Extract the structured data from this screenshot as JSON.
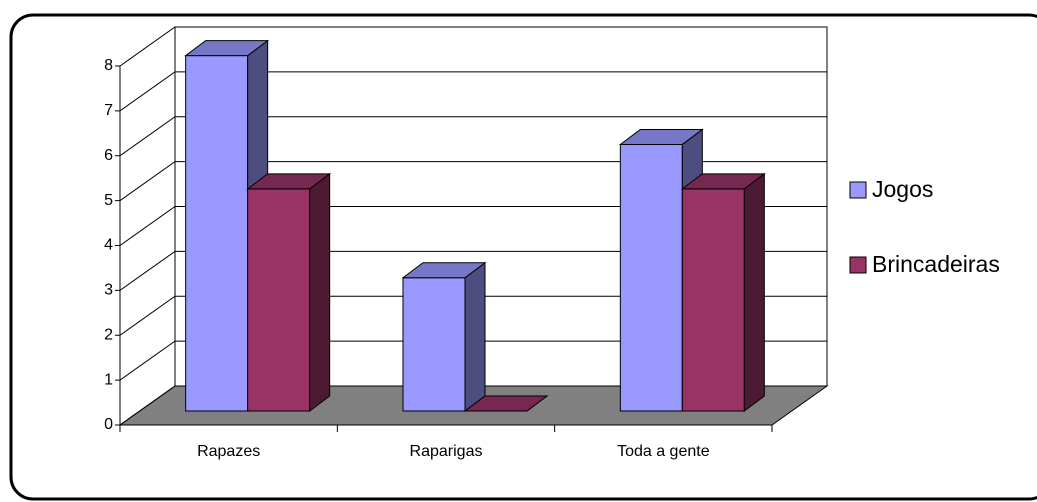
{
  "chart_data": {
    "type": "bar3d",
    "categories": [
      "Rapazes",
      "Raparigas",
      "Toda a gente"
    ],
    "series": [
      {
        "name": "Jogos",
        "color": "#9999ff",
        "values": [
          8,
          3,
          6
        ]
      },
      {
        "name": "Brincadeiras",
        "color": "#993366",
        "values": [
          5,
          0,
          5
        ]
      }
    ],
    "ylim": [
      0,
      8
    ],
    "yticks": [
      0,
      1,
      2,
      3,
      4,
      5,
      6,
      7,
      8
    ],
    "grid": true,
    "legend": "right"
  }
}
